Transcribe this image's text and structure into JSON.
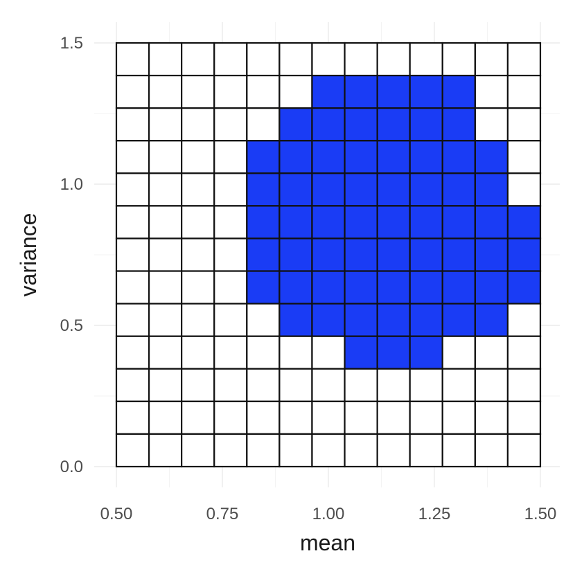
{
  "chart_data": {
    "type": "heatmap",
    "xlabel": "mean",
    "ylabel": "variance",
    "xlim": [
      0.5,
      1.5
    ],
    "ylim": [
      0.0,
      1.5
    ],
    "x_ticks": [
      "0.50",
      "0.75",
      "1.00",
      "1.25",
      "1.50"
    ],
    "x_tick_values": [
      0.5,
      0.75,
      1.0,
      1.25,
      1.5
    ],
    "y_ticks": [
      "0.0",
      "0.5",
      "1.0",
      "1.5"
    ],
    "y_tick_values": [
      0.0,
      0.5,
      1.0,
      1.5
    ],
    "grid": true,
    "cell_colors": {
      "true": "#1a3cf5",
      "false": "#ffffff"
    },
    "x_cells": [
      0.5,
      0.5769,
      0.6538,
      0.7308,
      0.8077,
      0.8846,
      0.9615,
      1.0385,
      1.1154,
      1.1923,
      1.2692,
      1.3462,
      1.4231,
      1.5
    ],
    "y_cells": [
      0.0,
      0.1154,
      0.2308,
      0.3462,
      0.4615,
      0.5769,
      0.6923,
      0.8077,
      0.9231,
      1.0385,
      1.1538,
      1.2692,
      1.3846,
      1.5
    ],
    "values_top_to_bottom": [
      [
        0,
        0,
        0,
        0,
        0,
        0,
        0,
        0,
        0,
        0,
        0,
        0,
        0
      ],
      [
        0,
        0,
        0,
        0,
        0,
        0,
        1,
        1,
        1,
        1,
        1,
        0,
        0
      ],
      [
        0,
        0,
        0,
        0,
        0,
        1,
        1,
        1,
        1,
        1,
        1,
        0,
        0
      ],
      [
        0,
        0,
        0,
        0,
        1,
        1,
        1,
        1,
        1,
        1,
        1,
        1,
        0
      ],
      [
        0,
        0,
        0,
        0,
        1,
        1,
        1,
        1,
        1,
        1,
        1,
        1,
        0
      ],
      [
        0,
        0,
        0,
        0,
        1,
        1,
        1,
        1,
        1,
        1,
        1,
        1,
        1
      ],
      [
        0,
        0,
        0,
        0,
        1,
        1,
        1,
        1,
        1,
        1,
        1,
        1,
        1
      ],
      [
        0,
        0,
        0,
        0,
        1,
        1,
        1,
        1,
        1,
        1,
        1,
        1,
        1
      ],
      [
        0,
        0,
        0,
        0,
        0,
        1,
        1,
        1,
        1,
        1,
        1,
        1,
        0
      ],
      [
        0,
        0,
        0,
        0,
        0,
        0,
        0,
        1,
        1,
        1,
        0,
        0,
        0
      ],
      [
        0,
        0,
        0,
        0,
        0,
        0,
        0,
        0,
        0,
        0,
        0,
        0,
        0
      ],
      [
        0,
        0,
        0,
        0,
        0,
        0,
        0,
        0,
        0,
        0,
        0,
        0,
        0
      ],
      [
        0,
        0,
        0,
        0,
        0,
        0,
        0,
        0,
        0,
        0,
        0,
        0,
        0
      ]
    ]
  }
}
